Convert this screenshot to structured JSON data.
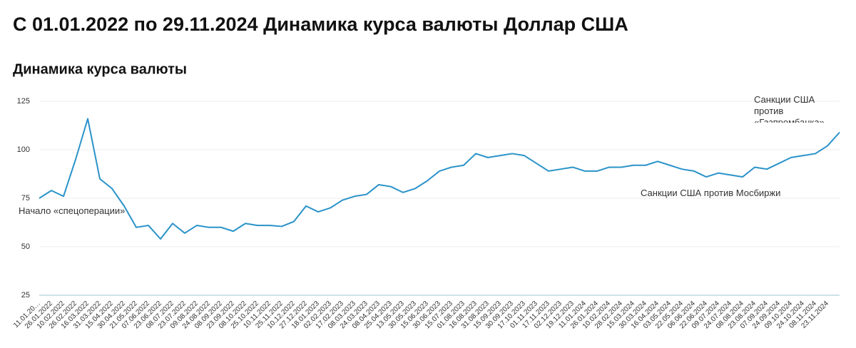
{
  "page_title": "С 01.01.2022 по 29.11.2024 Динамика курса валюты Доллар США",
  "chart_data": {
    "type": "line",
    "title": "Динамика курса валюты",
    "categories": [
      "11.01.20…",
      "26.01.2022",
      "10.02.2022",
      "26.02.2022",
      "16.03.2022",
      "31.03.2022",
      "15.04.2022",
      "30.04.2022",
      "21.05.2022",
      "07.06.2022",
      "23.06.2022",
      "08.07.2022",
      "23.07.2022",
      "09.08.2022",
      "24.08.2022",
      "08.09.2022",
      "23.09.2022",
      "08.10.2022",
      "25.10.2022",
      "10.11.2022",
      "25.11.2022",
      "10.12.2022",
      "27.12.2022",
      "18.01.2023",
      "02.02.2023",
      "17.02.2023",
      "08.03.2023",
      "24.03.2023",
      "08.04.2023",
      "25.04.2023",
      "13.05.2023",
      "30.05.2023",
      "15.06.2023",
      "30.06.2023",
      "15.07.2023",
      "01.08.2023",
      "16.08.2023",
      "31.08.2023",
      "15.09.2023",
      "30.09.2023",
      "17.10.2023",
      "01.11.2023",
      "17.11.2023",
      "02.12.2023",
      "19.12.2023",
      "11.01.2024",
      "26.01.2024",
      "10.02.2024",
      "28.02.2024",
      "15.03.2024",
      "30.03.2024",
      "16.04.2024",
      "03.05.2024",
      "22.05.2024",
      "06.06.2024",
      "22.06.2024",
      "09.07.2024",
      "24.07.2024",
      "08.08.2024",
      "23.08.2024",
      "07.09.2024",
      "24.09.2024",
      "09.10.2024",
      "24.10.2024",
      "08.11.2024",
      "23.11.2024",
      null
    ],
    "series": [
      {
        "name": "Доллар США",
        "color": "#2a93c9",
        "values": [
          75,
          79,
          76,
          95,
          116,
          85,
          80,
          71,
          60,
          61,
          54,
          62,
          57,
          61,
          60,
          60,
          58,
          62,
          61,
          61,
          60.5,
          63,
          71,
          68,
          70,
          74,
          76,
          77,
          82,
          81,
          78,
          80,
          84,
          89,
          91,
          92,
          98,
          96,
          97,
          98,
          97,
          93,
          89,
          90,
          91,
          89,
          89,
          91,
          91,
          92,
          92,
          94,
          92,
          90,
          89,
          86,
          88,
          87,
          86,
          91,
          90,
          93,
          96,
          97,
          98,
          102,
          109
        ]
      }
    ],
    "ylim": [
      25,
      125
    ],
    "yticks": [
      25,
      50,
      75,
      100,
      125
    ],
    "grid": true,
    "annotations": [
      "Начало «спецоперации»",
      "Санкции США против Мосбиржи",
      "Санкции США против «Газпромбанка»"
    ]
  }
}
